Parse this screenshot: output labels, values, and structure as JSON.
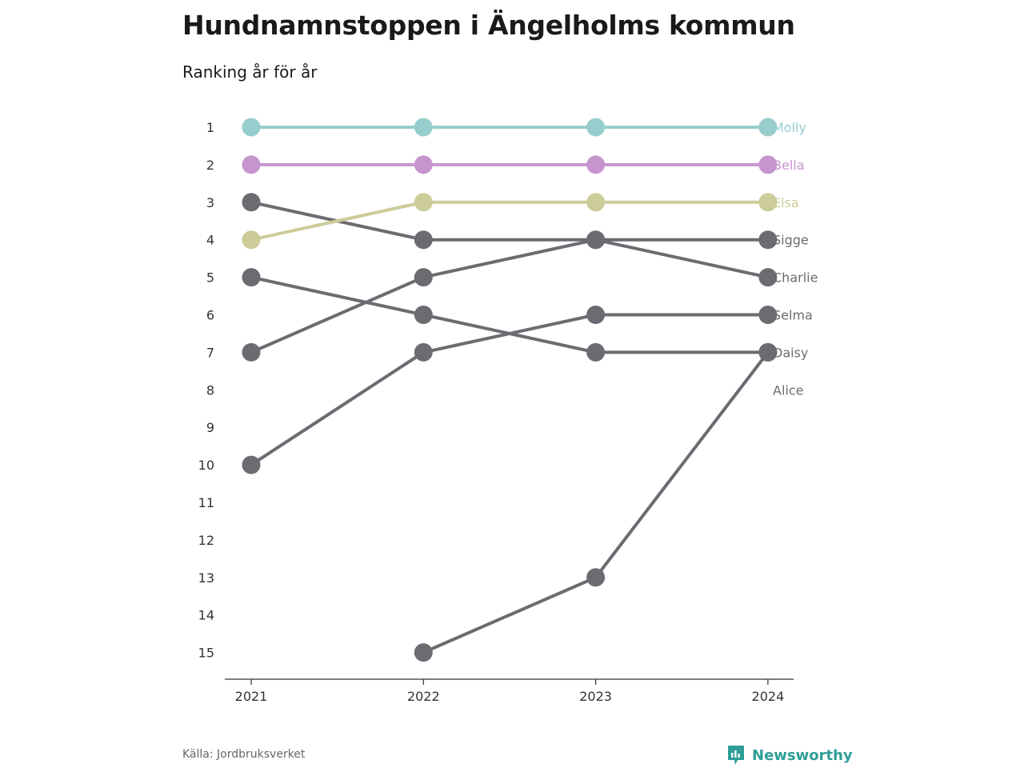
{
  "header": {
    "title": "Hundnamnstoppen i Ängelholms kommun",
    "subtitle": "Ranking år för år"
  },
  "footer": {
    "source": "Källa: Jordbruksverket",
    "brand": "Newsworthy"
  },
  "colors": {
    "Molly": "#97cdcc",
    "Bella": "#c695ce",
    "Elsa": "#cccc99",
    "grey": "#6b6b71",
    "brand": "#2e9d97"
  },
  "chart_data": {
    "type": "line",
    "title": "Hundnamnstoppen i Ängelholms kommun",
    "subtitle": "Ranking år för år",
    "x": [
      "2021",
      "2022",
      "2023",
      "2024"
    ],
    "y_ticks": [
      "1",
      "2",
      "3",
      "4",
      "5",
      "6",
      "7",
      "8",
      "9",
      "10",
      "11",
      "12",
      "13",
      "14",
      "15"
    ],
    "ylim": [
      1,
      15
    ],
    "y_reversed": true,
    "grid": false,
    "legend": "direct labels at right end",
    "series": [
      {
        "name": "Molly",
        "values": [
          1,
          1,
          1,
          1
        ],
        "color": "#97cdcc"
      },
      {
        "name": "Bella",
        "values": [
          2,
          2,
          2,
          2
        ],
        "color": "#c695ce"
      },
      {
        "name": "Elsa",
        "values": [
          4,
          3,
          3,
          3
        ],
        "color": "#cccc99"
      },
      {
        "name": "Sigge",
        "values": [
          7,
          5,
          4,
          4
        ],
        "color": "#6b6b71"
      },
      {
        "name": "Charlie",
        "values": [
          3,
          4,
          4,
          5
        ],
        "color": "#6b6b71"
      },
      {
        "name": "Selma",
        "values": [
          10,
          7,
          6,
          6
        ],
        "color": "#6b6b71"
      },
      {
        "name": "Daisy",
        "values": [
          5,
          6,
          7,
          7
        ],
        "color": "#6b6b71"
      },
      {
        "name": "Alice",
        "values": [
          null,
          15,
          13,
          7
        ],
        "color": "#6b6b71"
      }
    ]
  }
}
